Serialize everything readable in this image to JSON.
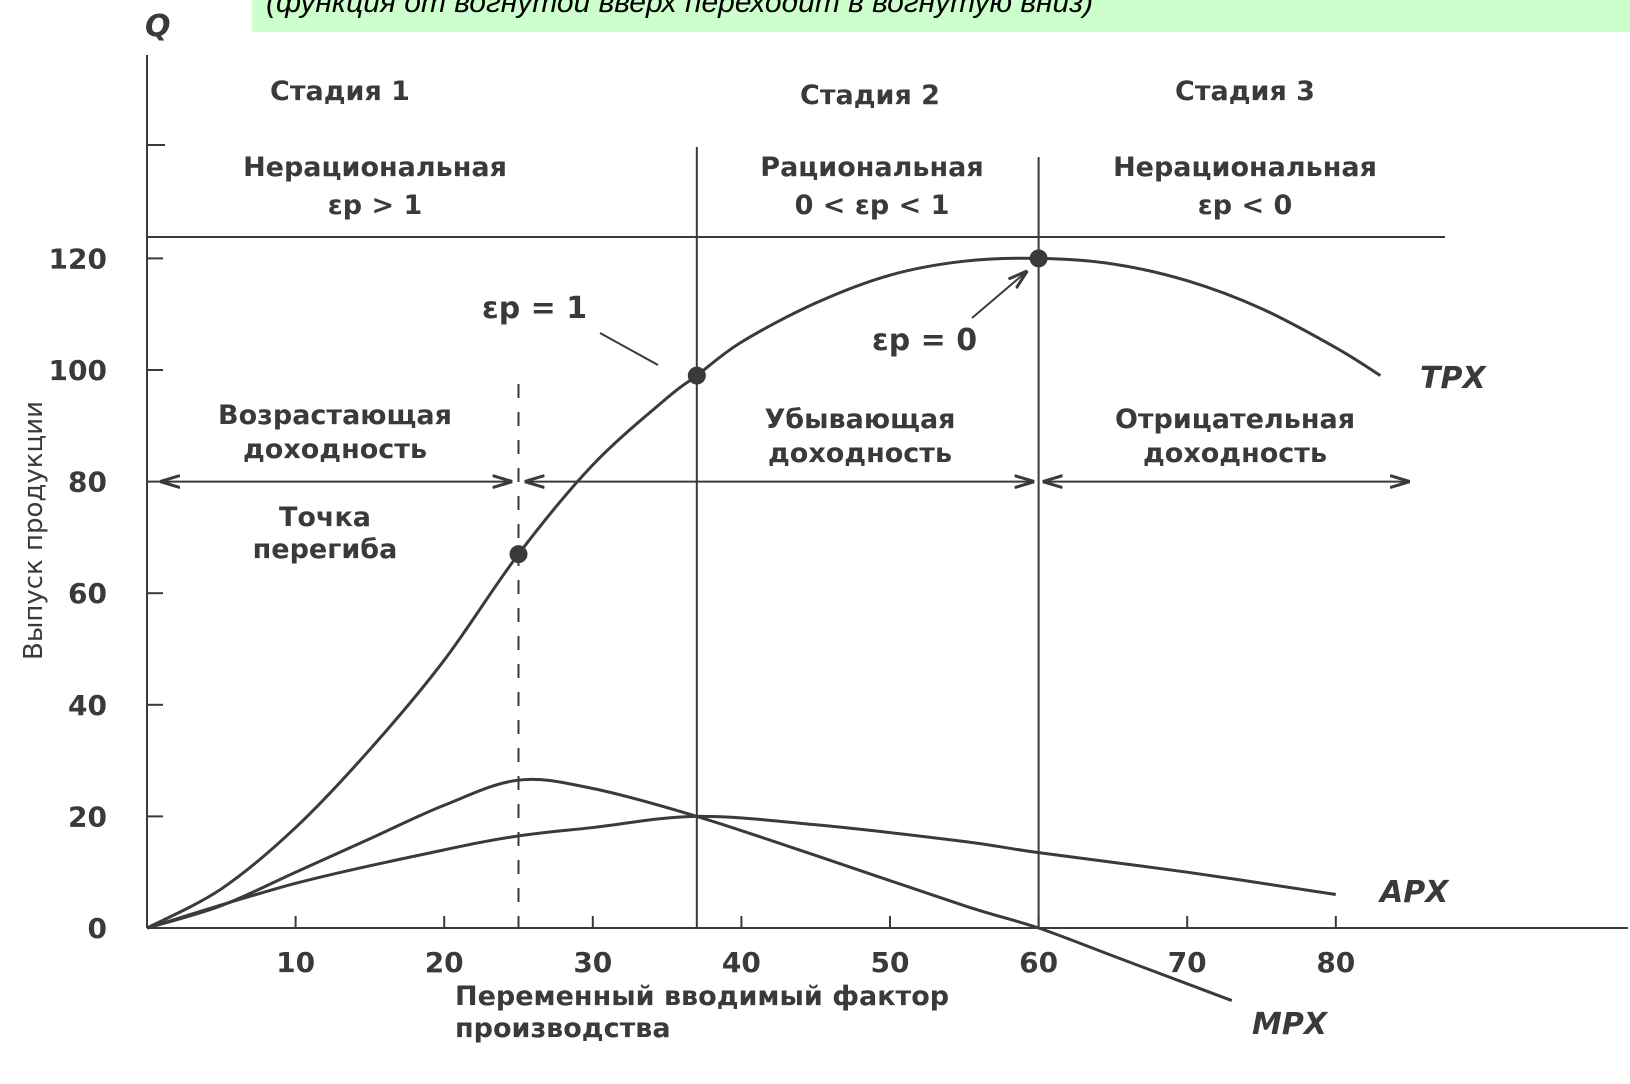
{
  "banner": {
    "text": "(функция от вогнутой вверх переходит в вогнутую вниз)",
    "color": "#ccffcc"
  },
  "chart_data": {
    "type": "line",
    "y_axis_symbol": "Q",
    "ylabel": "Выпуск продукции",
    "xlabel_line1": "Переменный вводимый фактор",
    "xlabel_line2": "производства",
    "xlim": [
      0,
      95
    ],
    "ylim": [
      0,
      135
    ],
    "x_ticks": [
      10,
      20,
      30,
      40,
      50,
      60,
      70,
      80
    ],
    "y_ticks": [
      0,
      20,
      40,
      60,
      80,
      100,
      120
    ],
    "grid": false,
    "series": [
      {
        "name": "TPX",
        "x": [
          0,
          5,
          10,
          15,
          20,
          25,
          30,
          35,
          37,
          40,
          45,
          50,
          55,
          60,
          65,
          70,
          75,
          80,
          83
        ],
        "y": [
          0,
          7,
          18,
          32,
          48,
          67,
          83,
          95,
          99,
          105,
          112,
          117,
          119.5,
          120,
          119,
          116,
          111,
          104,
          99
        ]
      },
      {
        "name": "APX",
        "x": [
          0,
          10,
          20,
          25,
          30,
          37,
          45,
          55,
          60,
          70,
          80
        ],
        "y": [
          0,
          8,
          14,
          16.5,
          18,
          20,
          18.5,
          15.5,
          13.5,
          10,
          6
        ]
      },
      {
        "name": "MPX",
        "x": [
          0,
          5,
          10,
          15,
          20,
          25,
          30,
          37,
          45,
          55,
          60,
          65,
          70,
          73
        ],
        "y": [
          0,
          4,
          10,
          16,
          22,
          26.5,
          25,
          20,
          13,
          4,
          0,
          -5,
          -10,
          -13
        ]
      }
    ],
    "points": [
      {
        "x": 25,
        "y": 67,
        "series": "TPX"
      },
      {
        "x": 37,
        "y": 99,
        "series": "TPX"
      },
      {
        "x": 60,
        "y": 120,
        "series": "TPX"
      }
    ],
    "stage_boundaries_x": [
      37,
      60
    ],
    "inflection_x": 25,
    "stages": [
      {
        "title": "Стадия 1",
        "kind": "Нерациональная",
        "condition": "εp > 1"
      },
      {
        "title": "Стадия 2",
        "kind": "Рациональная",
        "condition": "0 < εp < 1"
      },
      {
        "title": "Стадия 3",
        "kind": "Нерациональная",
        "condition": "εp < 0"
      }
    ],
    "returns": [
      {
        "line1": "Возрастающая",
        "line2": "доходность"
      },
      {
        "line1": "Убывающая",
        "line2": "доходность"
      },
      {
        "line1": "Отрицательная",
        "line2": "доходность"
      }
    ],
    "annotations": {
      "inflection_line1": "Точка",
      "inflection_line2": "перегиба",
      "elasticity_one": "εp = 1",
      "elasticity_zero": "εp = 0"
    },
    "series_labels": {
      "tp": "TPX",
      "ap": "APX",
      "mp": "MPX"
    }
  }
}
